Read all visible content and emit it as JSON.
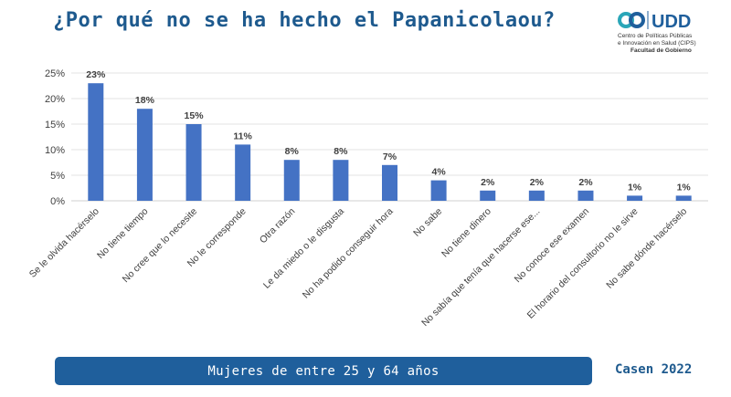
{
  "header": {
    "title": "¿Por qué no se ha hecho el Papanicolaou?"
  },
  "logo": {
    "brand": "UDD",
    "line1": "Centro de Políticas Públicas",
    "line2": "e Innovación en Salud (CIPS)",
    "line3": "Facultad de Gobierno",
    "colors": {
      "ring_teal": "#2aa6b8",
      "ring_blue": "#1f5f9c",
      "brand": "#1f5f9c"
    }
  },
  "footer": {
    "subtitle": "Mujeres de entre 25 y 64 años",
    "source": "Casen 2022"
  },
  "chart_data": {
    "type": "bar",
    "categories": [
      "Se le olvida hacérselo",
      "No tiene tiempo",
      "No cree que lo necesite",
      "No le corresponde",
      "Otra razón",
      "Le da miedo o le disgusta",
      "No ha podido conseguir hora",
      "No sabe",
      "No tiene dinero",
      "No sabía que tenía que hacerse ese...",
      "No conoce ese examen",
      "El horario del consultorio no le sirve",
      "No sabe dónde hacérselo"
    ],
    "values": [
      23,
      18,
      15,
      11,
      8,
      8,
      7,
      4,
      2,
      2,
      2,
      1,
      1
    ],
    "value_labels": [
      "23%",
      "18%",
      "15%",
      "11%",
      "8%",
      "8%",
      "7%",
      "4%",
      "2%",
      "2%",
      "2%",
      "1%",
      "1%"
    ],
    "y_ticks": [
      0,
      5,
      10,
      15,
      20,
      25
    ],
    "y_tick_labels": [
      "0%",
      "5%",
      "10%",
      "15%",
      "20%",
      "25%"
    ],
    "ylim": [
      0,
      25
    ],
    "grid": true,
    "bar_color": "#4472c4",
    "grid_color": "#e3e3e3",
    "label_color": "#404040"
  }
}
